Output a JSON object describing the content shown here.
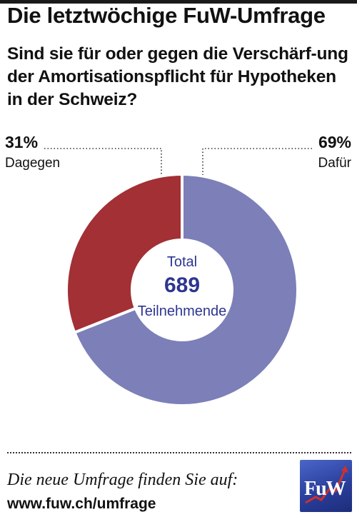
{
  "header": {
    "title": "Die letztwöchige FuW-Umfrage",
    "question": "Sind sie für oder gegen die Verschärf-ung der Amortisationspflicht für Hypotheken in der Schweiz?"
  },
  "chart_data": {
    "type": "pie",
    "categories": [
      "Dafür",
      "Dagegen"
    ],
    "values": [
      69,
      31
    ],
    "value_labels": [
      "69%",
      "31%"
    ],
    "colors": [
      "#7c7fb8",
      "#a23034"
    ],
    "center": {
      "label_top": "Total",
      "value": "689",
      "label_bottom": "Teilnehmende"
    }
  },
  "footer": {
    "text": "Die neue Umfrage finden Sie auf:",
    "url": "www.fuw.ch/umfrage",
    "logo_text": "FuW"
  },
  "colors": {
    "accent_text": "#2d3591",
    "logo_blue": "#2a3f9c",
    "logo_red": "#d0312d"
  }
}
